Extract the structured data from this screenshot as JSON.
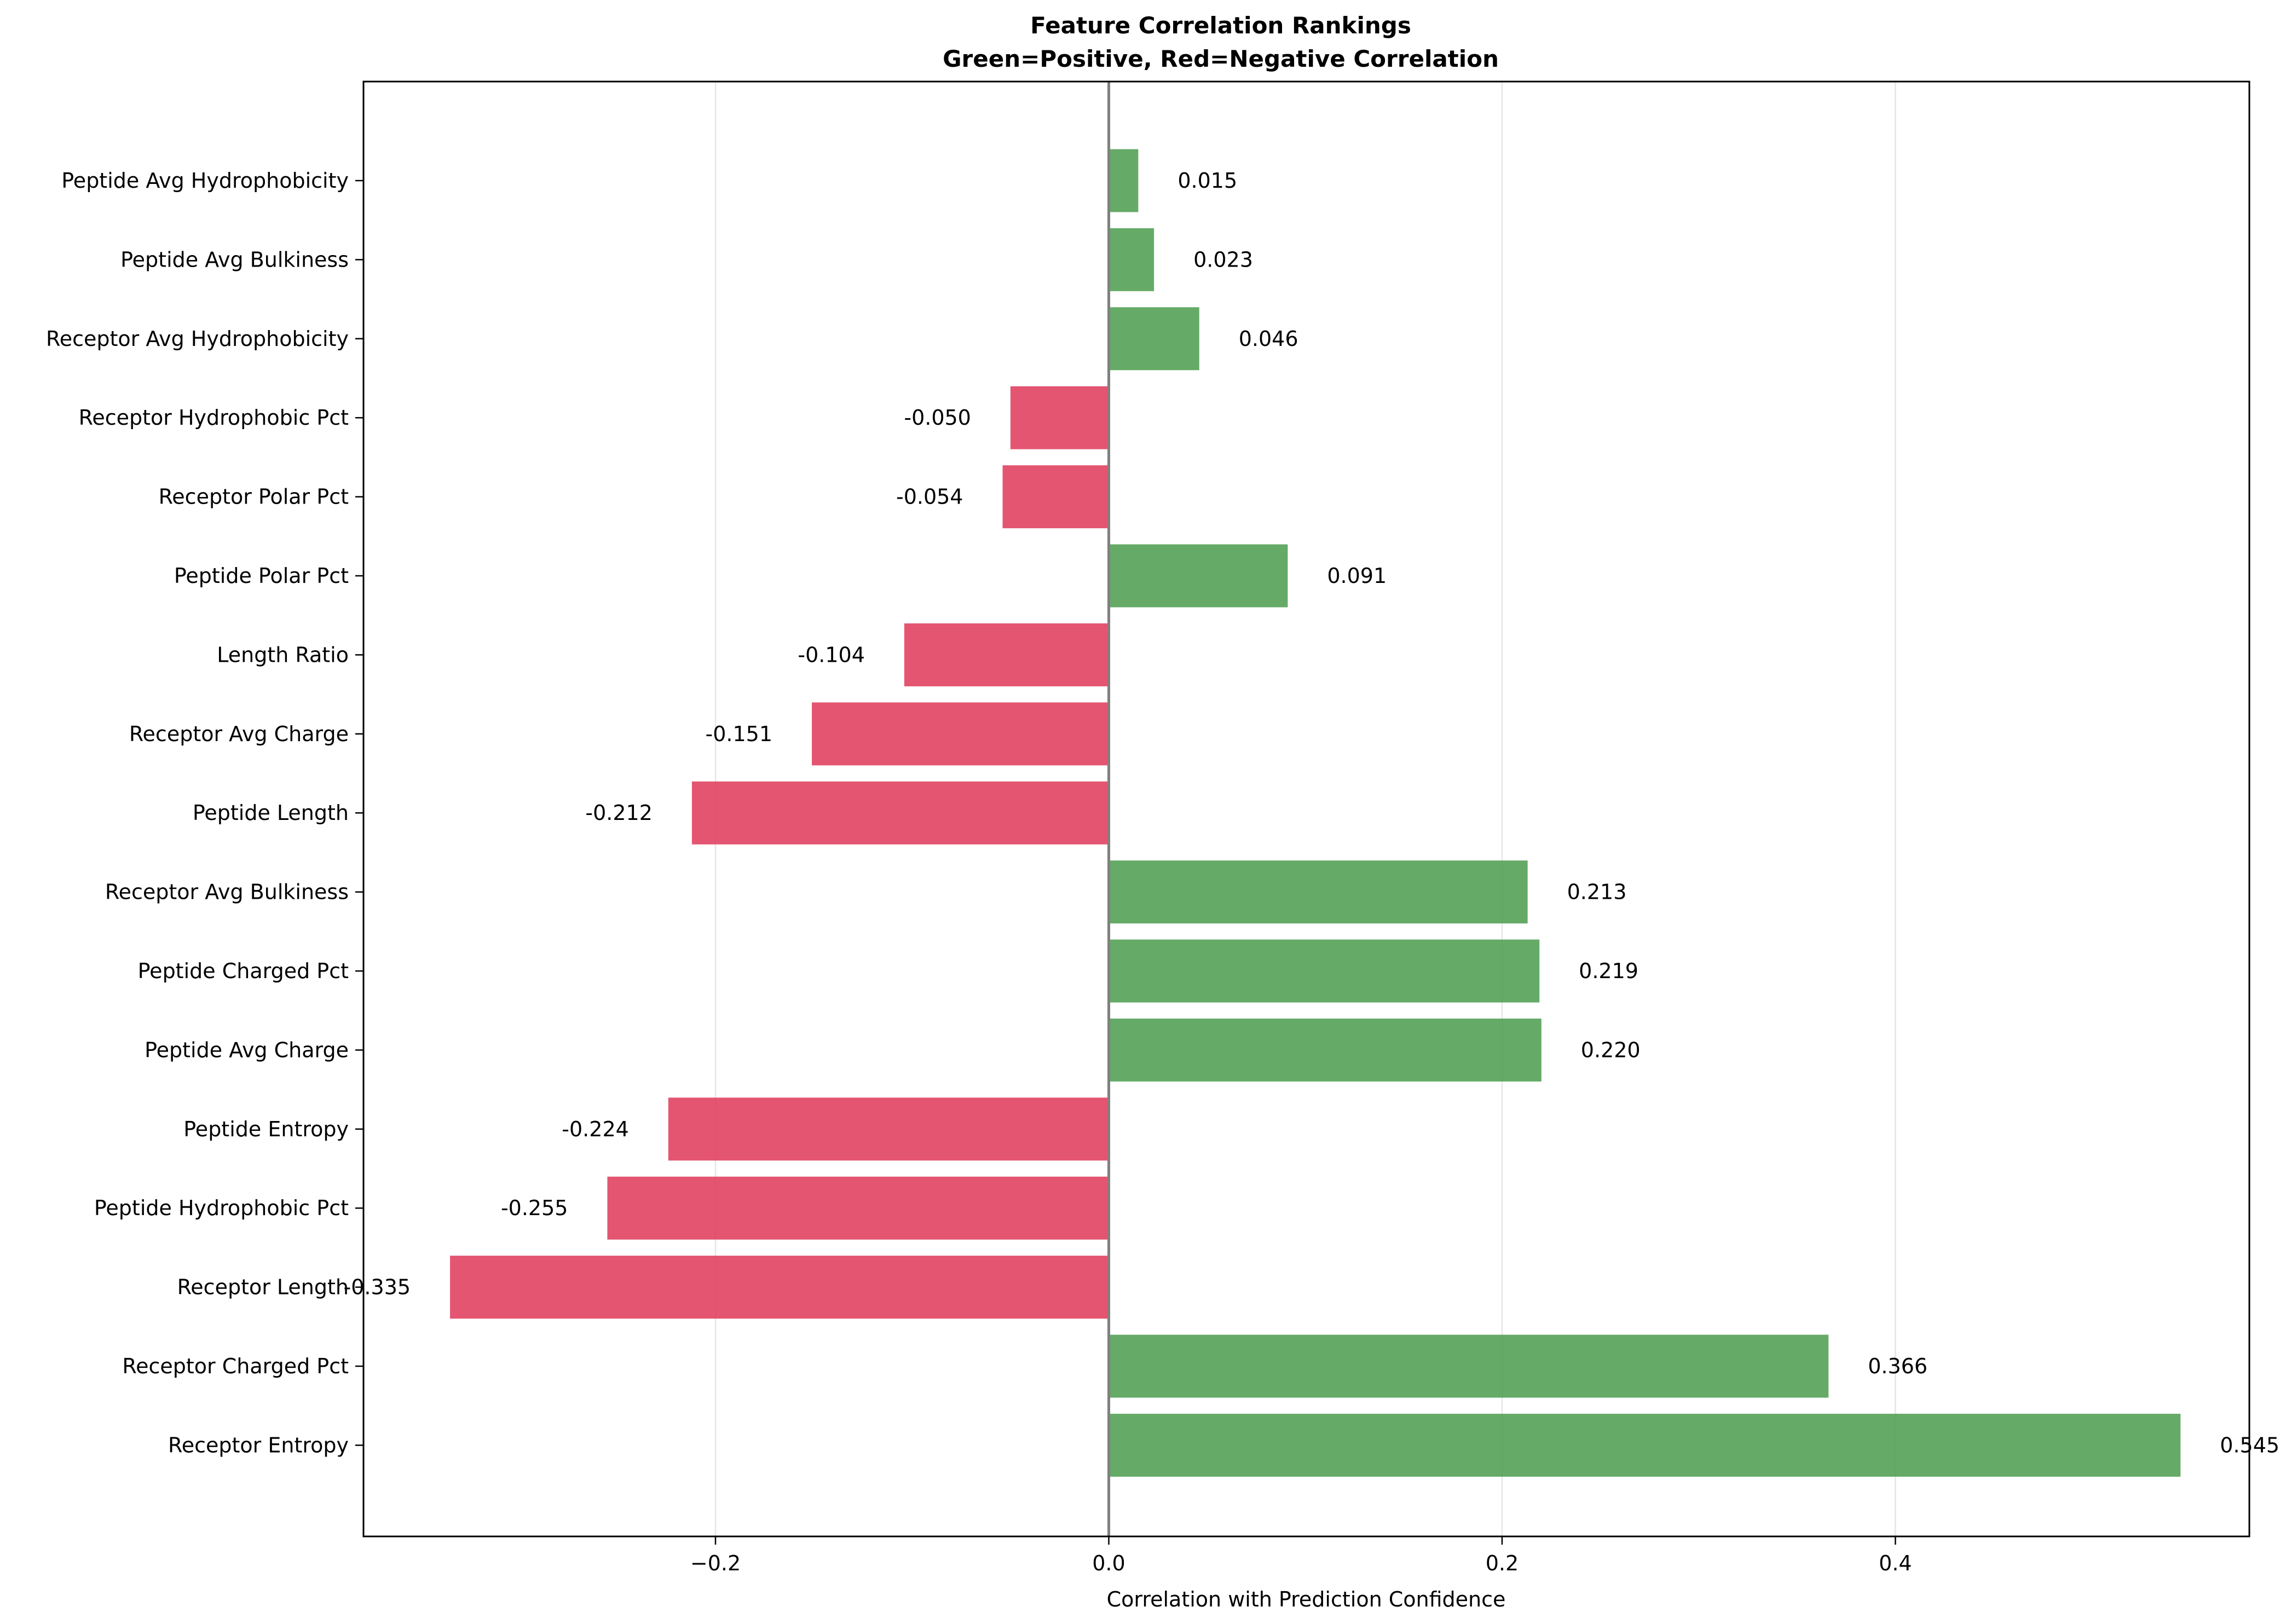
{
  "chart_data": {
    "type": "bar",
    "orientation": "horizontal",
    "title": "Feature Correlation Rankings",
    "subtitle": "Green=Positive, Red=Negative Correlation",
    "xlabel": "Correlation with Prediction Confidence",
    "ylabel": "",
    "xlim": [
      -0.379,
      0.58
    ],
    "xticks": [
      -0.2,
      0.0,
      0.2,
      0.4
    ],
    "xtick_labels": [
      "−0.2",
      "0.0",
      "0.2",
      "0.4"
    ],
    "grid": "vertical",
    "legend": "none",
    "positive_color": "#4e9f50",
    "negative_color": "#e03c5c",
    "categories": [
      "Peptide Avg Hydrophobicity",
      "Peptide Avg Bulkiness",
      "Receptor Avg Hydrophobicity",
      "Receptor Hydrophobic Pct",
      "Receptor Polar Pct",
      "Peptide Polar Pct",
      "Length Ratio",
      "Receptor Avg Charge",
      "Peptide Length",
      "Receptor Avg Bulkiness",
      "Peptide Charged Pct",
      "Peptide Avg Charge",
      "Peptide Entropy",
      "Peptide Hydrophobic Pct",
      "Receptor Length",
      "Receptor Charged Pct",
      "Receptor Entropy"
    ],
    "values": [
      0.015,
      0.023,
      0.046,
      -0.05,
      -0.054,
      0.091,
      -0.104,
      -0.151,
      -0.212,
      0.213,
      0.219,
      0.22,
      -0.224,
      -0.255,
      -0.335,
      0.366,
      0.545
    ],
    "value_labels": [
      "0.015",
      "0.023",
      "0.046",
      "-0.050",
      "-0.054",
      "0.091",
      "-0.104",
      "-0.151",
      "-0.212",
      "0.213",
      "0.219",
      "0.220",
      "-0.224",
      "-0.255",
      "-0.335",
      "0.366",
      "0.545"
    ]
  }
}
